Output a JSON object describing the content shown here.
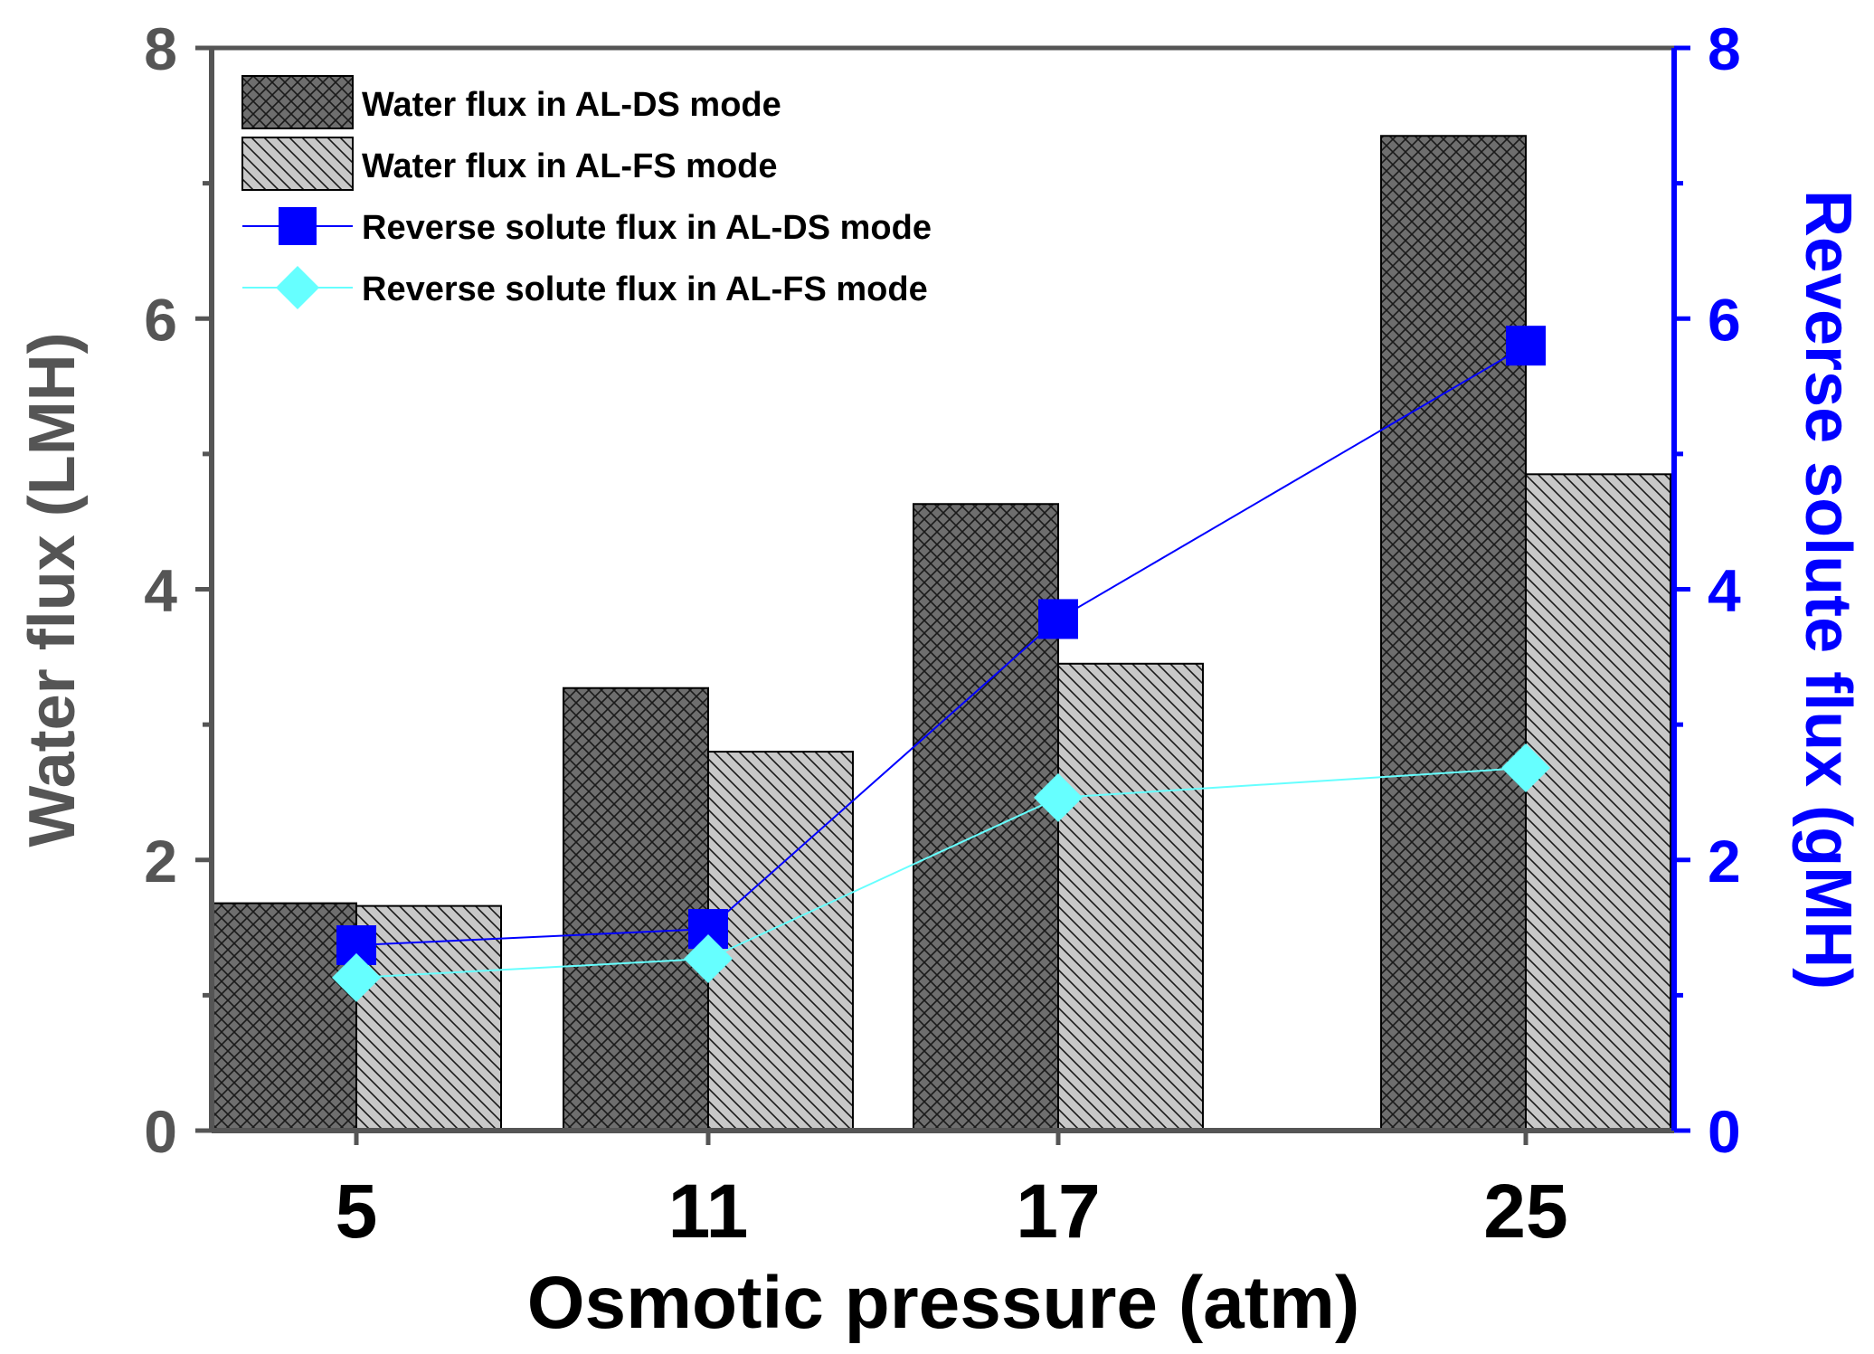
{
  "chart_data": {
    "type": "bar",
    "categories": [
      "5",
      "11",
      "17",
      "25"
    ],
    "xlabel": "Osmotic pressure (atm)",
    "ylabel": "Water flux (LMH)",
    "y2label": "Reverse solute flux (gMH)",
    "ylim": [
      0,
      8
    ],
    "y2lim": [
      0,
      8
    ],
    "yticks": [
      "0",
      "2",
      "4",
      "6",
      "8"
    ],
    "y2ticks": [
      "0",
      "2",
      "4",
      "6",
      "8"
    ],
    "grid": false,
    "legend_position": "top-left",
    "bar_series": [
      {
        "name": "Water flux in AL-DS mode",
        "values": [
          1.68,
          3.27,
          4.63,
          7.35
        ],
        "color": "#6e6e6e",
        "pattern": "crosshatch"
      },
      {
        "name": "Water flux in AL-FS mode",
        "values": [
          1.66,
          2.8,
          3.45,
          4.85
        ],
        "color": "#c8c8c8",
        "pattern": "diagonal"
      }
    ],
    "line_series": [
      {
        "name": "Reverse solute flux in AL-DS mode",
        "values": [
          1.37,
          1.49,
          3.78,
          5.8
        ],
        "color": "#0000ff",
        "marker": "square",
        "axis": "right"
      },
      {
        "name": "Reverse solute flux in AL-FS mode",
        "values": [
          1.13,
          1.27,
          2.46,
          2.68
        ],
        "color": "#66ffff",
        "marker": "diamond",
        "axis": "right"
      }
    ]
  }
}
